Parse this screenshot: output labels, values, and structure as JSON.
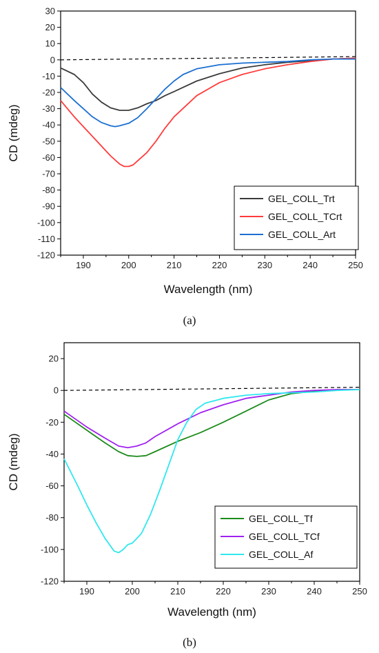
{
  "chart_data": [
    {
      "type": "line",
      "panel_label": "(a)",
      "xlabel": "Wavelength (nm)",
      "ylabel": "CD (mdeg)",
      "xlim": [
        185,
        250
      ],
      "ylim": [
        -120,
        30
      ],
      "xticks": [
        190,
        200,
        210,
        220,
        230,
        240,
        250
      ],
      "yticks": [
        30,
        20,
        10,
        0,
        -10,
        -20,
        -30,
        -40,
        -50,
        -60,
        -70,
        -80,
        -90,
        -100,
        -110,
        -120
      ],
      "legend_position": "bottom-right",
      "reference_line": {
        "style": "dashed",
        "color": "#000000",
        "x": [
          185,
          250
        ],
        "y": [
          0,
          2
        ]
      },
      "series": [
        {
          "name": "GEL_COLL_Trt",
          "color": "#3a3a3a",
          "x": [
            185,
            188,
            190,
            192,
            194,
            196,
            198,
            200,
            202,
            204,
            206,
            208,
            210,
            215,
            220,
            225,
            230,
            235,
            240,
            245,
            250
          ],
          "y": [
            -5,
            -9,
            -14,
            -21,
            -26,
            -29.5,
            -31,
            -31,
            -29.5,
            -27,
            -25,
            -22,
            -19.5,
            -13,
            -8.5,
            -5,
            -3,
            -1.5,
            -0.5,
            0.5,
            1
          ]
        },
        {
          "name": "GEL_COLL_TCrt",
          "color": "#ff3b3b",
          "x": [
            185,
            188,
            190,
            192,
            194,
            196,
            198,
            199,
            200,
            201,
            202,
            204,
            206,
            208,
            210,
            215,
            220,
            225,
            230,
            235,
            240,
            245,
            250
          ],
          "y": [
            -25,
            -35,
            -41,
            -47,
            -53,
            -59,
            -64,
            -65.5,
            -65.5,
            -64.5,
            -62,
            -57,
            -50,
            -42,
            -35,
            -22,
            -14,
            -9,
            -5.5,
            -3,
            -1,
            0.5,
            1
          ]
        },
        {
          "name": "GEL_COLL_Art",
          "color": "#1a6fd1",
          "x": [
            185,
            188,
            190,
            192,
            194,
            196,
            197,
            198,
            200,
            202,
            204,
            206,
            208,
            210,
            212,
            215,
            220,
            225,
            230,
            235,
            240,
            245,
            250
          ],
          "y": [
            -17,
            -25,
            -30,
            -35,
            -38.5,
            -40.5,
            -41,
            -40.5,
            -39,
            -35.5,
            -30,
            -24,
            -18,
            -13,
            -9,
            -5.5,
            -3,
            -2,
            -1.5,
            -1,
            0,
            0.5,
            0.5
          ]
        }
      ],
      "legend": [
        "GEL_COLL_Trt",
        "GEL_COLL_TCrt",
        "GEL_COLL_Art"
      ]
    },
    {
      "type": "line",
      "panel_label": "(b)",
      "xlabel": "Wavelength (nm)",
      "ylabel": "CD (mdeg)",
      "xlim": [
        185,
        250
      ],
      "ylim": [
        -120,
        30
      ],
      "xticks": [
        190,
        200,
        210,
        220,
        230,
        240,
        250
      ],
      "yticks": [
        20,
        0,
        -20,
        -40,
        -60,
        -80,
        -100,
        -120
      ],
      "legend_position": "bottom-right",
      "reference_line": {
        "style": "dashed",
        "color": "#000000",
        "x": [
          185,
          250
        ],
        "y": [
          0,
          2
        ]
      },
      "series": [
        {
          "name": "GEL_COLL_Tf",
          "color": "#1b8a1b",
          "x": [
            185,
            190,
            194,
            197,
            199,
            201,
            203,
            205,
            210,
            215,
            220,
            225,
            230,
            235,
            240,
            245,
            250
          ],
          "y": [
            -15,
            -25,
            -33,
            -38.5,
            -41,
            -41.5,
            -41,
            -38.5,
            -32,
            -26.5,
            -20,
            -13,
            -6,
            -2,
            -0.5,
            0.5,
            0.5
          ]
        },
        {
          "name": "GEL_COLL_TCf",
          "color": "#a020f0",
          "x": [
            185,
            190,
            194,
            197,
            199,
            201,
            203,
            205,
            210,
            215,
            220,
            225,
            230,
            235,
            240,
            245,
            250
          ],
          "y": [
            -13,
            -23,
            -30,
            -35,
            -36,
            -35,
            -33,
            -29,
            -21,
            -14,
            -9,
            -5,
            -3,
            -1,
            0,
            0.5,
            0.5
          ]
        },
        {
          "name": "GEL_COLL_Af",
          "color": "#2ee8ee",
          "x": [
            185,
            188,
            190,
            192,
            194,
            196,
            197,
            198,
            199,
            200,
            201,
            202,
            204,
            206,
            208,
            210,
            212,
            214,
            216,
            220,
            225,
            230,
            240,
            245,
            250
          ],
          "y": [
            -43,
            -60,
            -72,
            -83,
            -93,
            -101,
            -102,
            -100,
            -97,
            -96,
            -93,
            -90,
            -78,
            -63,
            -47,
            -31,
            -20,
            -12,
            -8,
            -5,
            -3,
            -2,
            -1,
            0,
            0.5
          ]
        }
      ],
      "legend": [
        "GEL_COLL_Tf",
        "GEL_COLL_TCf",
        "GEL_COLL_Af"
      ]
    }
  ]
}
